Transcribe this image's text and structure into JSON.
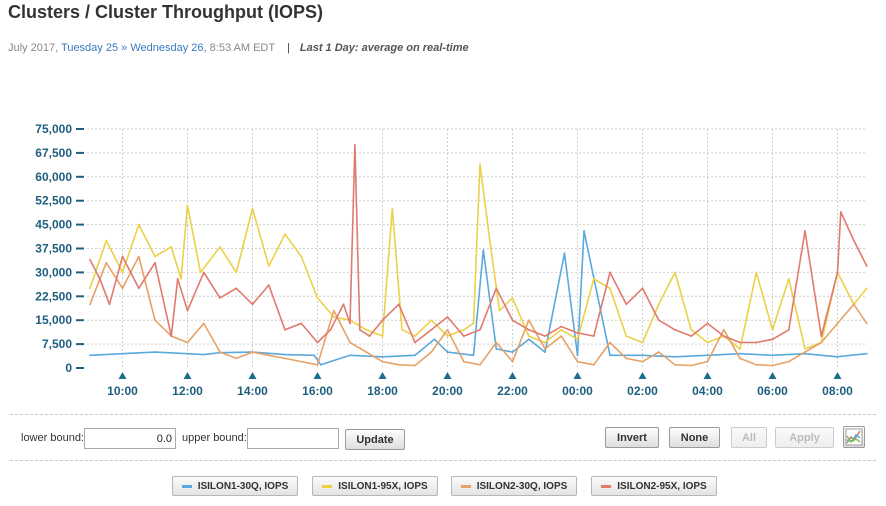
{
  "page": {
    "title": "Clusters / Cluster Throughput (IOPS)",
    "range_month": "July 2017,",
    "range_from": "Tuesday 25",
    "range_sep": "»",
    "range_to": "Wednesday 26,",
    "range_time": "8:53 AM EDT",
    "divider": "|",
    "mode": "Last 1 Day: average on real-time"
  },
  "controls": {
    "lower_label": "lower bound:",
    "lower_value": "0.0",
    "upper_label": "upper bound:",
    "upper_value": "",
    "update": "Update",
    "invert": "Invert",
    "none": "None",
    "all": "All",
    "apply": "Apply",
    "chart_icon": "line-chart-icon"
  },
  "legend": [
    {
      "label": "ISILON1-30Q, IOPS",
      "color": "#5aa9dc"
    },
    {
      "label": "ISILON1-95X, IOPS",
      "color": "#ecd047"
    },
    {
      "label": "ISILON2-30Q, IOPS",
      "color": "#e6a266"
    },
    {
      "label": "ISILON2-95X, IOPS",
      "color": "#e07a6c"
    }
  ],
  "chart_data": {
    "type": "line",
    "x_start": "09:00",
    "x_end": "08:53",
    "x_ticks": [
      "10:00",
      "12:00",
      "14:00",
      "16:00",
      "18:00",
      "20:00",
      "22:00",
      "00:00",
      "02:00",
      "04:00",
      "06:00",
      "08:00"
    ],
    "y_ticks": [
      "0",
      "7,500",
      "15,000",
      "22,500",
      "30,000",
      "37,500",
      "45,000",
      "52,500",
      "60,000",
      "67,500",
      "75,000"
    ],
    "ylim": [
      0,
      75000
    ],
    "grid": true,
    "series": [
      {
        "name": "ISILON1-30Q, IOPS",
        "color": "#5aa9dc",
        "x": [
          9.0,
          10.0,
          11.0,
          12.0,
          12.5,
          13.0,
          14.0,
          15.0,
          15.9,
          16.1,
          17.0,
          18.0,
          19.0,
          19.6,
          20.0,
          20.8,
          21.1,
          21.5,
          22.0,
          22.5,
          23.0,
          23.6,
          24.0,
          24.2,
          25.0,
          26.0,
          27.0,
          28.0,
          29.0,
          30.0,
          31.0,
          32.0,
          32.4,
          32.9
        ],
        "y": [
          4000,
          4500,
          5000,
          4500,
          4200,
          4800,
          5000,
          4200,
          4000,
          1000,
          4000,
          3500,
          4000,
          9000,
          5000,
          4000,
          37000,
          6000,
          5000,
          9000,
          5000,
          36000,
          4000,
          43000,
          4000,
          4000,
          3500,
          4000,
          4500,
          4000,
          4500,
          3500,
          4000,
          4500
        ]
      },
      {
        "name": "ISILON1-95X, IOPS",
        "color": "#ecd047",
        "x": [
          9.0,
          9.5,
          10.0,
          10.5,
          11.0,
          11.5,
          11.8,
          12.0,
          12.4,
          13.0,
          13.5,
          14.0,
          14.5,
          15.0,
          15.5,
          16.0,
          16.5,
          17.0,
          17.5,
          18.0,
          18.3,
          18.6,
          19.0,
          19.5,
          20.0,
          20.5,
          20.8,
          21.0,
          21.3,
          21.6,
          22.0,
          22.5,
          23.0,
          23.5,
          24.0,
          24.5,
          25.0,
          25.5,
          26.0,
          26.5,
          27.0,
          27.5,
          28.0,
          28.5,
          29.0,
          29.5,
          30.0,
          30.5,
          31.0,
          31.5,
          32.0,
          32.5,
          32.9
        ],
        "y": [
          25000,
          40000,
          30000,
          45000,
          35000,
          38000,
          28000,
          51000,
          30000,
          38000,
          30000,
          50000,
          32000,
          42000,
          35000,
          22000,
          16000,
          15000,
          12000,
          10000,
          50000,
          12000,
          10000,
          15000,
          10000,
          12000,
          14000,
          64000,
          40000,
          18000,
          22000,
          10000,
          8000,
          12000,
          9000,
          28000,
          25000,
          10000,
          8000,
          20000,
          30000,
          12000,
          8000,
          10000,
          6000,
          30000,
          12000,
          28000,
          6000,
          8000,
          30000,
          20000,
          25000
        ]
      },
      {
        "name": "ISILON2-30Q, IOPS",
        "color": "#e6a266",
        "x": [
          9.0,
          9.5,
          10.0,
          10.5,
          11.0,
          11.5,
          12.0,
          12.5,
          13.0,
          13.5,
          14.0,
          14.5,
          15.0,
          15.5,
          16.0,
          16.5,
          17.0,
          17.5,
          18.0,
          18.5,
          19.0,
          19.5,
          20.0,
          20.5,
          21.0,
          21.5,
          22.0,
          22.5,
          23.0,
          23.5,
          24.0,
          24.5,
          25.0,
          25.5,
          26.0,
          26.5,
          27.0,
          27.5,
          28.0,
          28.5,
          29.0,
          29.5,
          30.0,
          30.5,
          31.0,
          31.5,
          32.0,
          32.5,
          32.9
        ],
        "y": [
          20000,
          33000,
          25000,
          35000,
          15000,
          10000,
          8000,
          14000,
          5000,
          3000,
          5000,
          4000,
          3000,
          2000,
          1000,
          18000,
          8000,
          5000,
          2000,
          1000,
          800,
          5000,
          12000,
          2000,
          1000,
          8000,
          2000,
          15000,
          6000,
          10000,
          2000,
          1000,
          8000,
          3000,
          2000,
          5000,
          1000,
          800,
          2000,
          12000,
          3000,
          1000,
          800,
          2000,
          5000,
          8000,
          14000,
          20000,
          14000
        ]
      },
      {
        "name": "ISILON2-95X, IOPS",
        "color": "#e07a6c",
        "x": [
          9.0,
          9.3,
          9.6,
          10.0,
          10.5,
          11.0,
          11.5,
          11.7,
          12.0,
          12.5,
          13.0,
          13.5,
          14.0,
          14.5,
          15.0,
          15.5,
          16.0,
          16.4,
          16.8,
          17.0,
          17.15,
          17.3,
          17.6,
          18.0,
          18.5,
          19.0,
          19.5,
          20.0,
          20.5,
          21.0,
          21.5,
          22.0,
          22.5,
          23.0,
          23.5,
          24.0,
          24.5,
          25.0,
          25.5,
          26.0,
          26.5,
          27.0,
          27.5,
          28.0,
          28.5,
          29.0,
          29.5,
          30.0,
          30.5,
          31.0,
          31.5,
          32.0,
          32.1,
          32.5,
          32.9
        ],
        "y": [
          34000,
          28000,
          20000,
          35000,
          25000,
          33000,
          10000,
          28000,
          18000,
          30000,
          22000,
          25000,
          20000,
          26000,
          12000,
          14000,
          8000,
          12000,
          20000,
          14000,
          70000,
          12000,
          10000,
          15000,
          20000,
          8000,
          12000,
          16000,
          10000,
          12000,
          25000,
          15000,
          12000,
          10000,
          13000,
          11000,
          10000,
          30000,
          20000,
          25000,
          15000,
          12000,
          10000,
          14000,
          10000,
          8000,
          8000,
          9000,
          12000,
          43000,
          10000,
          30000,
          49000,
          40000,
          32000
        ]
      }
    ]
  }
}
